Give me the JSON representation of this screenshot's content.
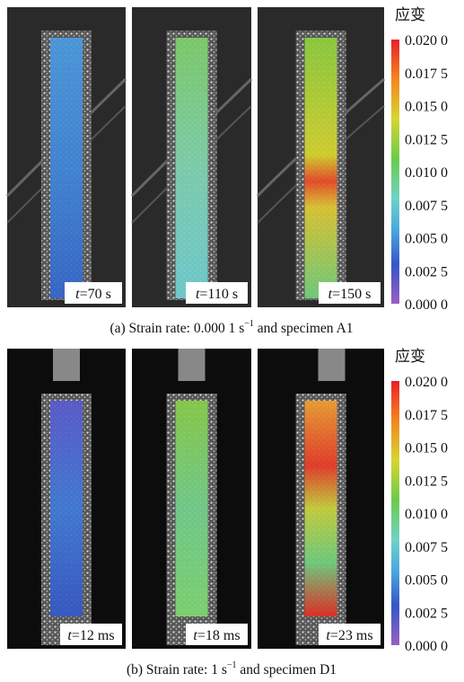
{
  "panels": [
    {
      "images": [
        {
          "var": "t",
          "label": "=70 s"
        },
        {
          "var": "t",
          "label": "=110 s"
        },
        {
          "var": "t",
          "label": "=150 s"
        }
      ],
      "colorbar": {
        "title": "应变",
        "ticks": [
          "0.020 0",
          "0.017 5",
          "0.015 0",
          "0.012 5",
          "0.010 0",
          "0.007 5",
          "0.005 0",
          "0.002 5",
          "0.000 0"
        ]
      },
      "caption": {
        "prefix": "(a)  Strain rate: 0.000 1 s",
        "sup": "−1",
        "suffix": " and specimen A1"
      }
    },
    {
      "images": [
        {
          "var": "t",
          "label": "=12 ms"
        },
        {
          "var": "t",
          "label": "=18 ms"
        },
        {
          "var": "t",
          "label": "=23 ms"
        }
      ],
      "colorbar": {
        "title": "应变",
        "ticks": [
          "0.020 0",
          "0.017 5",
          "0.015 0",
          "0.012 5",
          "0.010 0",
          "0.007 5",
          "0.005 0",
          "0.002 5",
          "0.000 0"
        ]
      },
      "caption": {
        "prefix": "(b)  Strain rate: 1 s",
        "sup": "−1",
        "suffix": " and specimen D1"
      }
    }
  ]
}
